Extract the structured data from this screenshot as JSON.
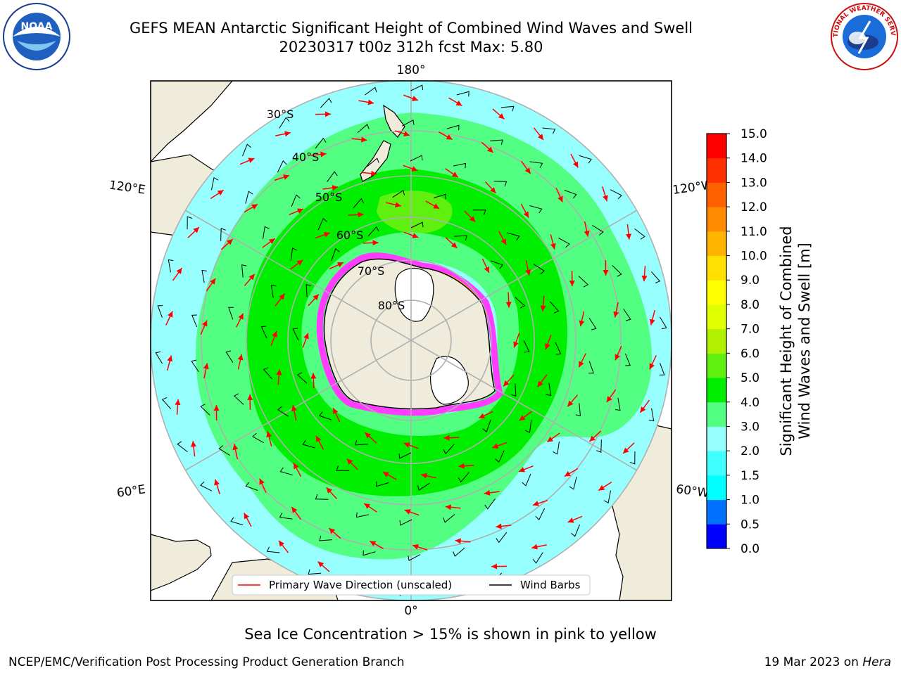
{
  "header": {
    "title_line1": "GEFS MEAN Antarctic Significant Height of Combined Wind Waves and Swell",
    "title_line2": "20230317 t00z 312h fcst   Max: 5.80"
  },
  "logos": {
    "left": "NOAA",
    "right": "NATIONAL WEATHER SERVICE"
  },
  "map": {
    "lon_labels": {
      "top": "180°",
      "bottom": "0°",
      "upper_left": "120°E",
      "upper_right": "120°W",
      "lower_left": "60°E",
      "lower_right": "60°W"
    },
    "lat_labels": [
      "30°S",
      "40°S",
      "50°S",
      "60°S",
      "70°S",
      "80°S"
    ],
    "legend": {
      "wave": "Primary Wave Direction (unscaled)",
      "barb": "Wind Barbs"
    },
    "colors": {
      "land": "#efecdc",
      "ocean_low": "#98ffff",
      "ocean_mid": "#52ff82",
      "ocean_high": "#00f000",
      "peak": "#6ef020",
      "ice": "#ff3cff",
      "arrow": "#ff0000"
    }
  },
  "colorbar": {
    "label_line1": "Significant Height of Combined",
    "label_line2": "Wind Waves and Swell [m]",
    "ticks": [
      "0.0",
      "0.5",
      "1.0",
      "1.5",
      "2.0",
      "3.0",
      "4.0",
      "5.0",
      "6.0",
      "7.0",
      "8.0",
      "9.0",
      "10.0",
      "11.0",
      "12.0",
      "13.0",
      "14.0",
      "15.0"
    ],
    "colors": [
      "#0000ff",
      "#0070ff",
      "#00ffff",
      "#40ffff",
      "#98ffff",
      "#52ff82",
      "#00ee00",
      "#60f010",
      "#b0f000",
      "#e0ff00",
      "#ffff00",
      "#ffe000",
      "#ffb400",
      "#ff8c00",
      "#ff6000",
      "#ff3000",
      "#ff0000"
    ]
  },
  "footer": {
    "note": "Sea Ice Concentration > 15% is shown in pink to yellow",
    "credit": "NCEP/EMC/Verification Post Processing Product Generation Branch",
    "date": "19 Mar 2023 on ",
    "machine": "Hera"
  }
}
